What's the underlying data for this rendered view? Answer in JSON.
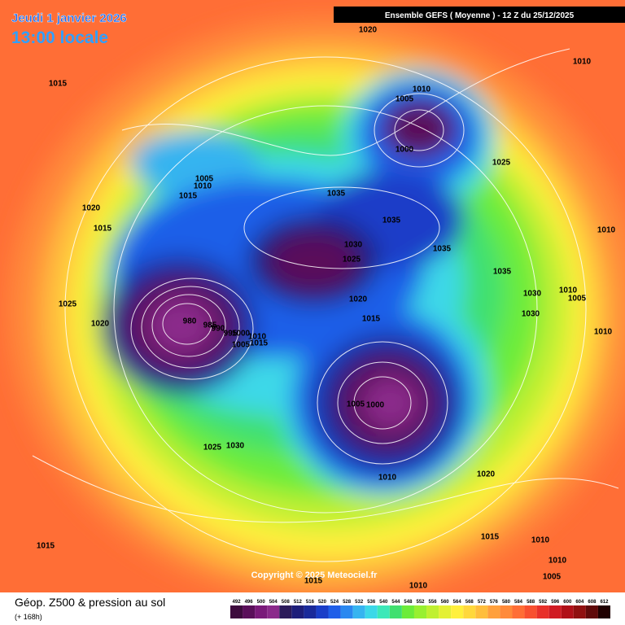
{
  "header": {
    "run": "Ensemble GEFS  ( Moyenne )  -  12 Z du 25/12/2025",
    "date": "Jeudi 1 janvier 2026",
    "time": "13:00 locale"
  },
  "isobar_labels": [
    1020,
    1010,
    1015,
    1010,
    1005,
    1000,
    1025,
    1005,
    1010,
    1015,
    1035,
    1020,
    1015,
    1035,
    1010,
    1030,
    1035,
    1025,
    1035,
    1030,
    1010,
    1005,
    1025,
    1020,
    1030,
    1015,
    1020,
    980,
    985,
    990,
    995,
    1000,
    1010,
    1010,
    1015,
    1005,
    1005,
    1000,
    1025,
    1030,
    1010,
    1020,
    1015,
    1015,
    1010,
    1010,
    1005,
    1015,
    1010
  ],
  "copyright": "Copyright © 2025 Meteociel.fr",
  "caption": {
    "title": "Géop. Z500 & pression au sol",
    "lead": "(+ 168h)"
  },
  "legend": [
    {
      "value": 492,
      "color": "#3d0b3d"
    },
    {
      "value": 496,
      "color": "#5a0f5a"
    },
    {
      "value": 500,
      "color": "#7a1a7a"
    },
    {
      "value": 504,
      "color": "#8b2a8b"
    },
    {
      "value": 508,
      "color": "#2b1a5a"
    },
    {
      "value": 512,
      "color": "#1e1e7a"
    },
    {
      "value": 516,
      "color": "#1a2a9a"
    },
    {
      "value": 520,
      "color": "#1a3ec8"
    },
    {
      "value": 524,
      "color": "#1f5ee8"
    },
    {
      "value": 528,
      "color": "#2a88f0"
    },
    {
      "value": 532,
      "color": "#36b4f0"
    },
    {
      "value": 536,
      "color": "#3cd8e8"
    },
    {
      "value": 540,
      "color": "#3ce8b8"
    },
    {
      "value": 544,
      "color": "#40e070"
    },
    {
      "value": 548,
      "color": "#6cec3a"
    },
    {
      "value": 552,
      "color": "#98f030"
    },
    {
      "value": 556,
      "color": "#c0f030"
    },
    {
      "value": 560,
      "color": "#e4f034"
    },
    {
      "value": 564,
      "color": "#fff03c"
    },
    {
      "value": 568,
      "color": "#ffd83c"
    },
    {
      "value": 572,
      "color": "#ffbe3c"
    },
    {
      "value": 576,
      "color": "#ffa03c"
    },
    {
      "value": 580,
      "color": "#ff8a3a"
    },
    {
      "value": 584,
      "color": "#ff6e36"
    },
    {
      "value": 588,
      "color": "#f85030"
    },
    {
      "value": 592,
      "color": "#e8302a"
    },
    {
      "value": 596,
      "color": "#d01a22"
    },
    {
      "value": 600,
      "color": "#b01018"
    },
    {
      "value": 604,
      "color": "#901010"
    },
    {
      "value": 608,
      "color": "#600a0a"
    },
    {
      "value": 612,
      "color": "#200000"
    }
  ]
}
